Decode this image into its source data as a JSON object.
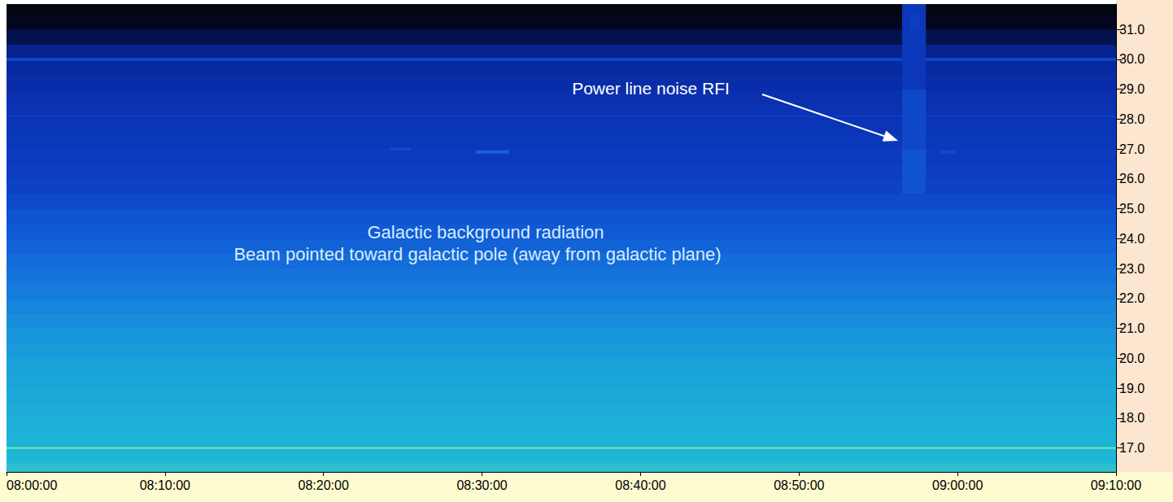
{
  "chart_data": {
    "type": "spectrogram",
    "grid": false,
    "xlim": [
      480,
      550
    ],
    "xticks": [
      {
        "value": 480,
        "label": "08:00:00"
      },
      {
        "value": 490,
        "label": "08:10:00"
      },
      {
        "value": 500,
        "label": "08:20:00"
      },
      {
        "value": 510,
        "label": "08:30:00"
      },
      {
        "value": 520,
        "label": "08:40:00"
      },
      {
        "value": 530,
        "label": "08:50:00"
      },
      {
        "value": 540,
        "label": "09:00:00"
      },
      {
        "value": 550,
        "label": "09:10:00"
      }
    ],
    "ylim": [
      16.2,
      31.85
    ],
    "yticks": [
      {
        "value": 17,
        "label": "17.0"
      },
      {
        "value": 18,
        "label": "18.0"
      },
      {
        "value": 19,
        "label": "19.0"
      },
      {
        "value": 20,
        "label": "20.0"
      },
      {
        "value": 21,
        "label": "21.0"
      },
      {
        "value": 22,
        "label": "22.0"
      },
      {
        "value": 23,
        "label": "23.0"
      },
      {
        "value": 24,
        "label": "24.0"
      },
      {
        "value": 25,
        "label": "25.0"
      },
      {
        "value": 26,
        "label": "26.0"
      },
      {
        "value": 27,
        "label": "27.0"
      },
      {
        "value": 28,
        "label": "28.0"
      },
      {
        "value": 29,
        "label": "29.0"
      },
      {
        "value": 30,
        "label": "30.0"
      },
      {
        "value": 31,
        "label": "31.0"
      }
    ],
    "zlim": [
      0,
      100
    ],
    "background": {
      "f_edges": [
        16.2,
        16.5,
        17.0,
        17.5,
        18.0,
        18.5,
        19.0,
        19.5,
        20.0,
        20.5,
        21.0,
        21.5,
        22.0,
        22.5,
        23.0,
        23.5,
        24.0,
        24.5,
        25.0,
        25.5,
        26.0,
        26.5,
        27.0,
        27.5,
        28.0,
        28.5,
        29.0,
        29.5,
        30.0,
        30.5,
        31.0,
        31.5,
        31.85
      ],
      "z": [
        92,
        90,
        88,
        86,
        84,
        82,
        80,
        78,
        75,
        72,
        69,
        66,
        63,
        60,
        57,
        54,
        51,
        48,
        45,
        42,
        40,
        38,
        36,
        34,
        32,
        30,
        28,
        26,
        22,
        14,
        6,
        3
      ]
    },
    "cells": [
      [
        480,
        550,
        29.95,
        30.05,
        45
      ],
      [
        480,
        550,
        28.07,
        28.13,
        40
      ],
      [
        480,
        550,
        16.97,
        17.03,
        100
      ],
      [
        504.2,
        505.5,
        26.95,
        27.05,
        45
      ],
      [
        509.6,
        511.7,
        26.85,
        26.95,
        55
      ],
      [
        538.9,
        539.9,
        26.85,
        26.95,
        45
      ],
      [
        536.5,
        538.0,
        29.0,
        31.85,
        35
      ],
      [
        536.5,
        538.0,
        27.0,
        29.0,
        44
      ],
      [
        536.5,
        538.0,
        25.5,
        27.0,
        48
      ],
      [
        537.0,
        537.6,
        31.0,
        31.5,
        40
      ]
    ],
    "annotations": [
      "Power line noise RFI",
      "Galactic background radiation",
      "Beam pointed toward galactic pole (away from galactic plane)"
    ]
  }
}
